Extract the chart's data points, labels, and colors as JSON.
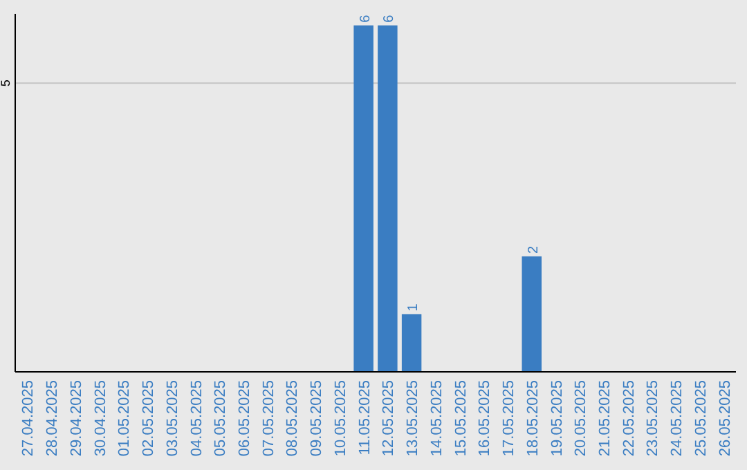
{
  "chart_data": {
    "type": "bar",
    "categories": [
      "27.04.2025",
      "28.04.2025",
      "29.04.2025",
      "30.04.2025",
      "01.05.2025",
      "02.05.2025",
      "03.05.2025",
      "04.05.2025",
      "05.05.2025",
      "06.05.2025",
      "07.05.2025",
      "08.05.2025",
      "09.05.2025",
      "10.05.2025",
      "11.05.2025",
      "12.05.2025",
      "13.05.2025",
      "14.05.2025",
      "15.05.2025",
      "16.05.2025",
      "17.05.2025",
      "18.05.2025",
      "19.05.2025",
      "20.05.2025",
      "21.05.2025",
      "22.05.2025",
      "23.05.2025",
      "24.05.2025",
      "25.05.2025",
      "26.05.2025"
    ],
    "values": [
      null,
      null,
      null,
      null,
      null,
      null,
      null,
      null,
      null,
      null,
      null,
      null,
      null,
      null,
      6,
      6,
      1,
      null,
      null,
      null,
      null,
      2,
      null,
      null,
      null,
      null,
      null,
      null,
      null,
      null
    ],
    "color": "#3a7dc2",
    "ylim": [
      0,
      6.2
    ],
    "yticks": [
      5
    ],
    "grid": "y",
    "data_labels": true
  }
}
